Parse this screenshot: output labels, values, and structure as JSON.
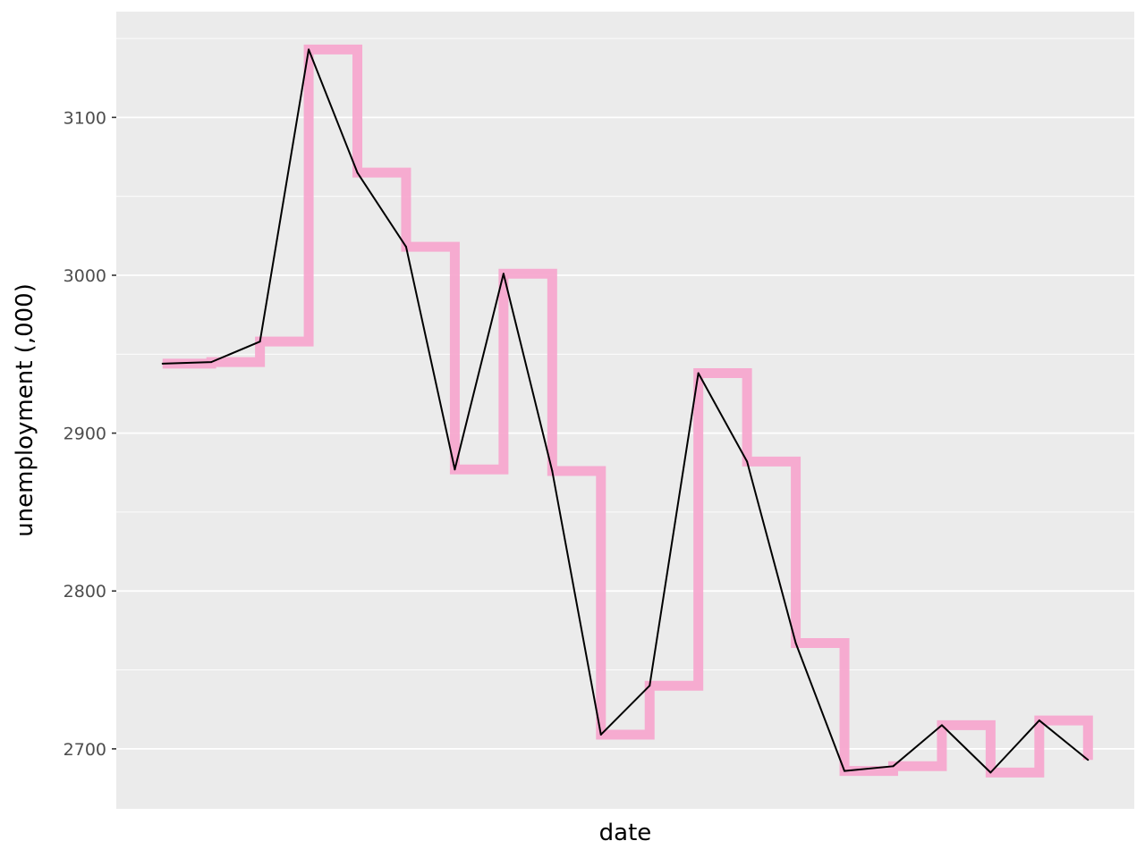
{
  "chart_data": {
    "type": "line",
    "title": "",
    "xlabel": "date",
    "ylabel": "unemployment (,000)",
    "ylim": [
      2662,
      3167
    ],
    "y_ticks": [
      2700,
      2800,
      2900,
      3000,
      3100
    ],
    "y_tick_labels": [
      "2700",
      "2800",
      "2900",
      "3000",
      "3100"
    ],
    "x_tick_labels": [],
    "grid": true,
    "legend": "none",
    "x": [
      1,
      2,
      3,
      4,
      5,
      6,
      7,
      8,
      9,
      10,
      11,
      12,
      13,
      14,
      15,
      16,
      17,
      18,
      19,
      20
    ],
    "series": [
      {
        "style": "step",
        "color": "#f7a8cf",
        "values": [
          2944,
          2945,
          2958,
          3143,
          3065,
          3018,
          2877,
          3001,
          2876,
          2709,
          2740,
          2938,
          2882,
          2767,
          2686,
          2689,
          2715,
          2685,
          2718,
          2693
        ]
      },
      {
        "style": "line",
        "color": "#000000",
        "values": [
          2944,
          2945,
          2958,
          3143,
          3065,
          3018,
          2877,
          3001,
          2876,
          2709,
          2740,
          2938,
          2882,
          2767,
          2686,
          2689,
          2715,
          2685,
          2718,
          2693
        ]
      }
    ]
  },
  "colors": {
    "panel_background": "#ebebeb",
    "gridline": "#ffffff",
    "step_series": "#f7a8cf",
    "line_series": "#000000"
  }
}
